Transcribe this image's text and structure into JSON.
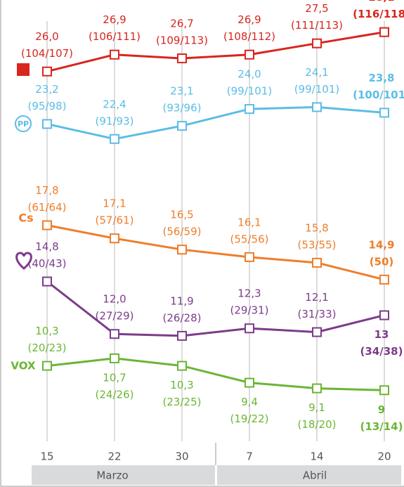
{
  "chart_data": {
    "type": "line",
    "categories": [
      "15",
      "22",
      "30",
      "7",
      "14",
      "20"
    ],
    "months": [
      "Marzo",
      "Abril"
    ],
    "ylim": [
      5,
      30
    ],
    "series": [
      {
        "color": "#d7261e",
        "values": [
          26.0,
          26.9,
          26.7,
          26.9,
          27.5,
          28.1
        ],
        "value_labels": [
          "26,0",
          "26,9",
          "26,7",
          "26,9",
          "27,5",
          "28,1"
        ],
        "seat_labels": [
          "(104/107)",
          "(106/111)",
          "(109/113)",
          "(108/112)",
          "(111/113)",
          "(116/118)"
        ]
      },
      {
        "name": "PP",
        "color": "#5bbde6",
        "values": [
          23.2,
          22.4,
          23.1,
          24.0,
          24.1,
          23.8
        ],
        "value_labels": [
          "23,2",
          "22,4",
          "23,1",
          "24,0",
          "24,1",
          "23,8"
        ],
        "seat_labels": [
          "(95/98)",
          "(91/93)",
          "(93/96)",
          "(99/101)",
          "(99/101)",
          "(100/101)"
        ]
      },
      {
        "name": "Cs",
        "color": "#ef7d2a",
        "values": [
          17.8,
          17.1,
          16.5,
          16.1,
          15.8,
          14.9
        ],
        "value_labels": [
          "17,8",
          "17,1",
          "16,5",
          "16,1",
          "15,8",
          "14,9"
        ],
        "seat_labels": [
          "(61/64)",
          "(57/61)",
          "(56/59)",
          "(55/56)",
          "(53/55)",
          "(50)"
        ]
      },
      {
        "color": "#7c3c8a",
        "values": [
          14.8,
          12.0,
          11.9,
          12.3,
          12.1,
          13
        ],
        "value_labels": [
          "14,8",
          "12,0",
          "11,9",
          "12,3",
          "12,1",
          "13"
        ],
        "seat_labels": [
          "(40/43)",
          "(27/29)",
          "(26/28)",
          "(29/31)",
          "(31/33)",
          "(34/38)"
        ]
      },
      {
        "name": "VOX",
        "color": "#6ab634",
        "values": [
          10.3,
          10.7,
          10.3,
          9.4,
          9.1,
          9
        ],
        "value_labels": [
          "10,3",
          "10,7",
          "10,3",
          "9,4",
          "9,1",
          "9"
        ],
        "seat_labels": [
          "(20/23)",
          "(24/26)",
          "(23/25)",
          "(19/22)",
          "(18/20)",
          "(13/14)"
        ]
      }
    ]
  }
}
